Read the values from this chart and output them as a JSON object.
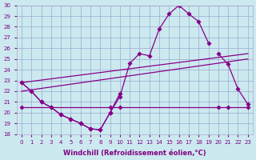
{
  "xlabel": "Windchill (Refroidissement éolien,°C)",
  "x_ticks": [
    0,
    1,
    2,
    3,
    4,
    5,
    6,
    7,
    8,
    9,
    10,
    11,
    12,
    13,
    14,
    15,
    16,
    17,
    18,
    19,
    20,
    21,
    22,
    23
  ],
  "ylim": [
    18,
    30
  ],
  "yticks": [
    18,
    19,
    20,
    21,
    22,
    23,
    24,
    25,
    26,
    27,
    28,
    29,
    30
  ],
  "background_color": "#cce9f0",
  "line_color": "#880088",
  "grid_color": "#99aacc",
  "curve1_x": [
    0,
    1,
    2,
    3,
    4,
    5,
    6,
    7,
    8,
    9,
    10,
    11,
    12,
    13,
    14,
    15,
    16,
    17,
    18,
    19
  ],
  "curve1_y": [
    22.8,
    22.0,
    21.0,
    20.5,
    19.8,
    19.4,
    19.0,
    18.5,
    18.4,
    20.0,
    21.5,
    24.6,
    25.5,
    25.3,
    27.8,
    29.2,
    30.0,
    29.2,
    28.5,
    26.5
  ],
  "curve2_x": [
    0,
    1,
    2,
    3,
    4,
    5,
    6,
    7,
    8,
    9,
    10,
    20,
    21,
    22,
    23
  ],
  "curve2_y": [
    22.8,
    22.0,
    21.0,
    20.5,
    19.8,
    19.4,
    19.0,
    18.5,
    18.4,
    20.0,
    21.8,
    25.5,
    24.5,
    22.2,
    20.8
  ],
  "trendline1_x": [
    0,
    23
  ],
  "trendline1_y": [
    22.8,
    25.5
  ],
  "trendline2_x": [
    0,
    23
  ],
  "trendline2_y": [
    22.0,
    25.0
  ],
  "flatline_x": [
    0,
    9,
    10,
    20,
    21,
    23
  ],
  "flatline_y": [
    20.5,
    20.5,
    20.5,
    20.5,
    20.5,
    20.5
  ]
}
